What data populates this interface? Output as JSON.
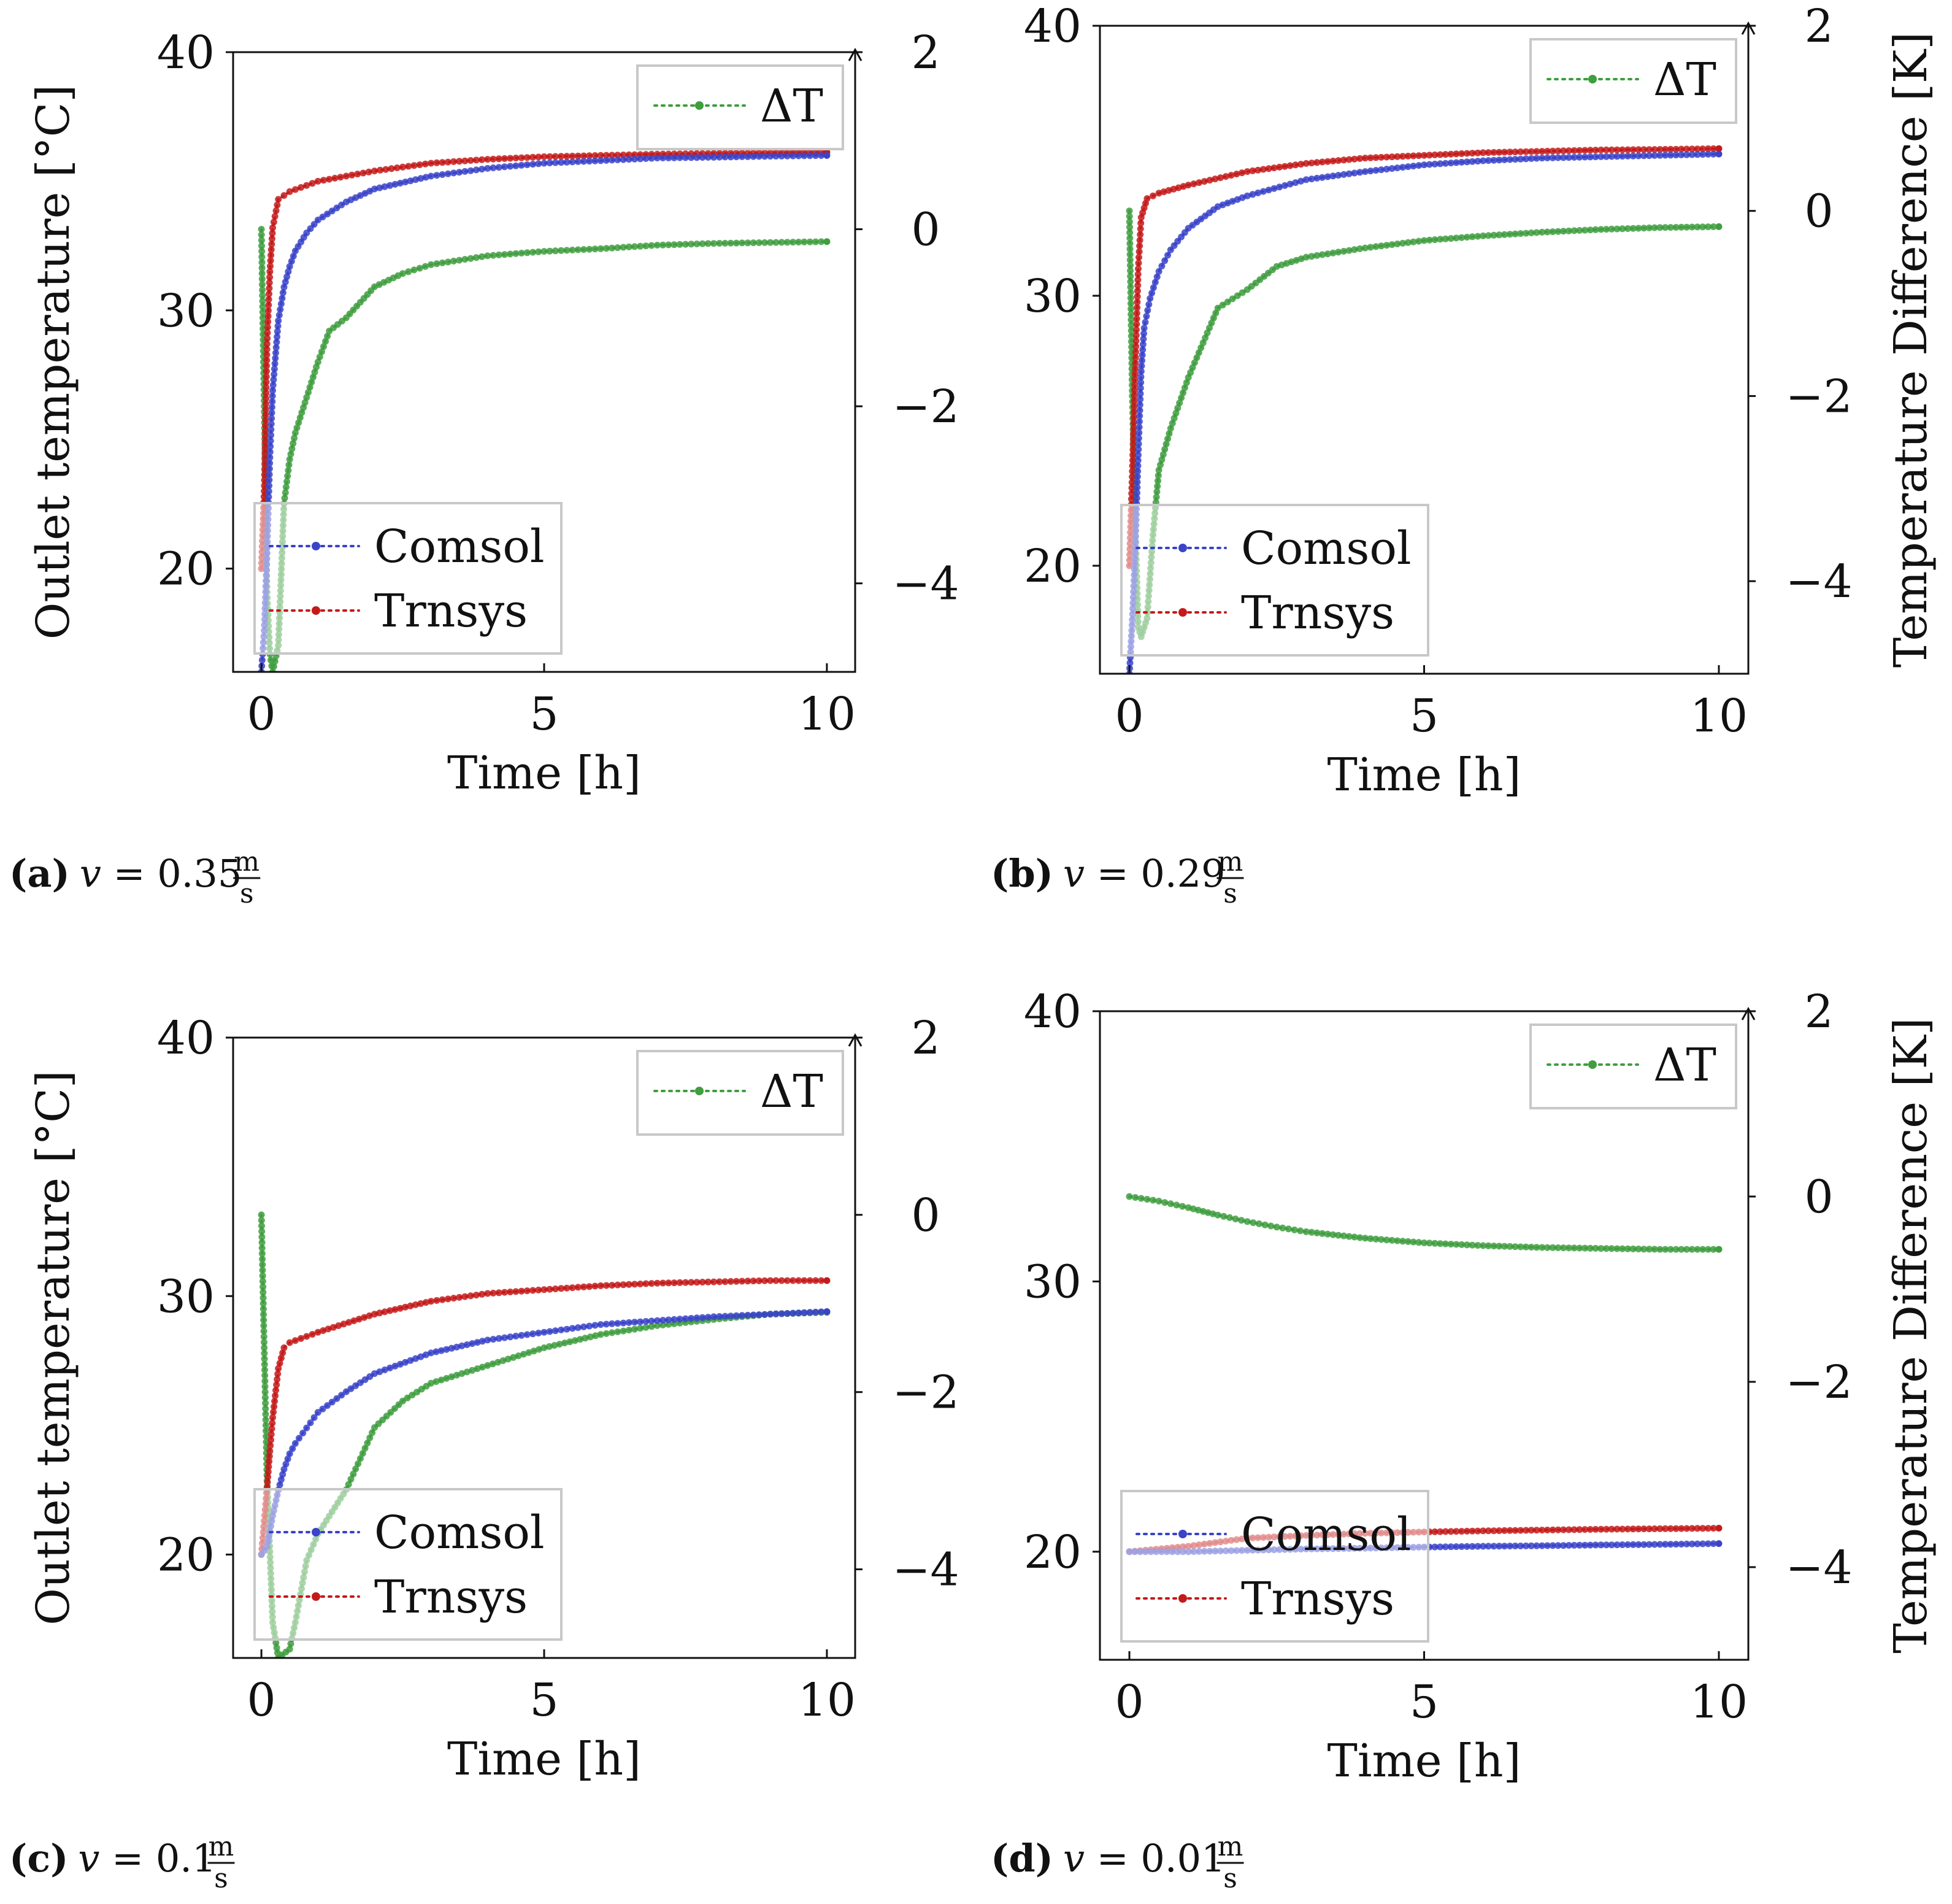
{
  "colors": {
    "comsol": "#3a43c9",
    "trnsys": "#c41a1a",
    "delta": "#3f9e3f",
    "legend_border": "#c8c8c8",
    "axis": "#111111"
  },
  "chart_data": [
    {
      "id": "a",
      "type": "line",
      "caption": {
        "tag": "(a)",
        "v_label": "v",
        "eq": " = 0.35 ",
        "unit_num": "m",
        "unit_den": "s"
      },
      "xlabel": "Time [h]",
      "ylabel": "Outlet temperature [°C]",
      "y2label": "",
      "xlim": [
        -0.5,
        10.5
      ],
      "ylim": [
        16,
        40
      ],
      "y2lim": [
        -5,
        2
      ],
      "xticks": [
        0,
        5,
        10
      ],
      "yticks": [
        20,
        30,
        40
      ],
      "y2ticks": [
        -4,
        -2,
        0,
        2
      ],
      "legend_main": [
        "Comsol",
        "Trnsys"
      ],
      "legend_delta": "ΔT",
      "series": [
        {
          "name": "Comsol",
          "axis": "left",
          "points": [
            [
              0,
              16
            ],
            [
              0.05,
              17.6
            ],
            [
              0.1,
              20.6
            ],
            [
              0.15,
              24.3
            ],
            [
              0.2,
              26.9
            ],
            [
              0.3,
              29.6
            ],
            [
              0.4,
              30.9
            ],
            [
              0.5,
              31.7
            ],
            [
              0.6,
              32.3
            ],
            [
              0.8,
              33
            ],
            [
              1,
              33.5
            ],
            [
              1.5,
              34.2
            ],
            [
              2,
              34.7
            ],
            [
              3,
              35.2
            ],
            [
              4,
              35.5
            ],
            [
              5,
              35.7
            ],
            [
              6,
              35.8
            ],
            [
              7,
              35.9
            ],
            [
              8,
              35.93
            ],
            [
              9,
              35.97
            ],
            [
              10,
              36
            ]
          ]
        },
        {
          "name": "Trnsys",
          "axis": "left",
          "points": [
            [
              0,
              20
            ],
            [
              0.05,
              23
            ],
            [
              0.1,
              28.7
            ],
            [
              0.15,
              31.5
            ],
            [
              0.2,
              33.2
            ],
            [
              0.3,
              34.3
            ],
            [
              0.5,
              34.6
            ],
            [
              1,
              35
            ],
            [
              2,
              35.4
            ],
            [
              3,
              35.7
            ],
            [
              4,
              35.85
            ],
            [
              5,
              35.95
            ],
            [
              6,
              36
            ],
            [
              7,
              36.05
            ],
            [
              8,
              36.08
            ],
            [
              9,
              36.1
            ],
            [
              10,
              36.12
            ]
          ]
        },
        {
          "name": "ΔT",
          "axis": "right",
          "points": [
            [
              0,
              0
            ],
            [
              0.05,
              -2
            ],
            [
              0.1,
              -4.1
            ],
            [
              0.15,
              -4.8
            ],
            [
              0.2,
              -5
            ],
            [
              0.3,
              -4.7
            ],
            [
              0.4,
              -3.1
            ],
            [
              0.5,
              -2.6
            ],
            [
              0.6,
              -2.3
            ],
            [
              0.8,
              -1.9
            ],
            [
              1,
              -1.5
            ],
            [
              1.2,
              -1.15
            ],
            [
              1.5,
              -1
            ],
            [
              2,
              -0.65
            ],
            [
              2.5,
              -0.5
            ],
            [
              3,
              -0.4
            ],
            [
              4,
              -0.3
            ],
            [
              5,
              -0.25
            ],
            [
              6,
              -0.22
            ],
            [
              7,
              -0.18
            ],
            [
              8,
              -0.16
            ],
            [
              9,
              -0.15
            ],
            [
              10,
              -0.14
            ]
          ]
        }
      ]
    },
    {
      "id": "b",
      "type": "line",
      "caption": {
        "tag": "(b)",
        "v_label": "v",
        "eq": " = 0.29 ",
        "unit_num": "m",
        "unit_den": "s"
      },
      "xlabel": "Time [h]",
      "ylabel": "",
      "y2label": "Temperature Difference [K]",
      "xlim": [
        -0.5,
        10.5
      ],
      "ylim": [
        16,
        40
      ],
      "y2lim": [
        -5,
        2
      ],
      "xticks": [
        0,
        5,
        10
      ],
      "yticks": [
        20,
        30,
        40
      ],
      "y2ticks": [
        -4,
        -2,
        0,
        2
      ],
      "legend_main": [
        "Comsol",
        "Trnsys"
      ],
      "legend_delta": "ΔT",
      "series": [
        {
          "name": "Comsol",
          "axis": "left",
          "points": [
            [
              0,
              16
            ],
            [
              0.05,
              18
            ],
            [
              0.1,
              20.7
            ],
            [
              0.15,
              24.1
            ],
            [
              0.2,
              27.2
            ],
            [
              0.25,
              28.8
            ],
            [
              0.35,
              29.9
            ],
            [
              0.5,
              30.9
            ],
            [
              0.7,
              31.7
            ],
            [
              1,
              32.5
            ],
            [
              1.5,
              33.3
            ],
            [
              2,
              33.7
            ],
            [
              3,
              34.3
            ],
            [
              4,
              34.6
            ],
            [
              5,
              34.85
            ],
            [
              6,
              35
            ],
            [
              7,
              35.1
            ],
            [
              8,
              35.15
            ],
            [
              9,
              35.2
            ],
            [
              10,
              35.25
            ]
          ]
        },
        {
          "name": "Trnsys",
          "axis": "left",
          "points": [
            [
              0,
              20
            ],
            [
              0.05,
              23.5
            ],
            [
              0.1,
              27.3
            ],
            [
              0.15,
              31
            ],
            [
              0.2,
              32.9
            ],
            [
              0.3,
              33.6
            ],
            [
              0.5,
              33.8
            ],
            [
              1,
              34.1
            ],
            [
              2,
              34.6
            ],
            [
              3,
              34.9
            ],
            [
              4,
              35.1
            ],
            [
              5,
              35.2
            ],
            [
              6,
              35.3
            ],
            [
              7,
              35.35
            ],
            [
              8,
              35.4
            ],
            [
              9,
              35.42
            ],
            [
              10,
              35.45
            ]
          ]
        },
        {
          "name": "ΔT",
          "axis": "right",
          "points": [
            [
              0,
              0
            ],
            [
              0.05,
              -2
            ],
            [
              0.1,
              -3.4
            ],
            [
              0.15,
              -4.5
            ],
            [
              0.2,
              -4.6
            ],
            [
              0.3,
              -4.4
            ],
            [
              0.4,
              -3.5
            ],
            [
              0.5,
              -2.8
            ],
            [
              0.7,
              -2.35
            ],
            [
              1,
              -1.8
            ],
            [
              1.5,
              -1.05
            ],
            [
              2,
              -0.85
            ],
            [
              2.5,
              -0.6
            ],
            [
              3,
              -0.5
            ],
            [
              4,
              -0.4
            ],
            [
              5,
              -0.32
            ],
            [
              6,
              -0.27
            ],
            [
              7,
              -0.23
            ],
            [
              8,
              -0.2
            ],
            [
              9,
              -0.18
            ],
            [
              10,
              -0.17
            ]
          ]
        }
      ]
    },
    {
      "id": "c",
      "type": "line",
      "caption": {
        "tag": "(c)",
        "v_label": "v",
        "eq": " = 0.1 ",
        "unit_num": "m",
        "unit_den": "s"
      },
      "xlabel": "Time [h]",
      "ylabel": "Outlet temperature [°C]",
      "y2label": "",
      "xlim": [
        -0.5,
        10.5
      ],
      "ylim": [
        16,
        40
      ],
      "y2lim": [
        -5,
        2
      ],
      "xticks": [
        0,
        5,
        10
      ],
      "yticks": [
        20,
        30,
        40
      ],
      "y2ticks": [
        -4,
        -2,
        0,
        2
      ],
      "legend_main": [
        "Comsol",
        "Trnsys"
      ],
      "legend_delta": "ΔT",
      "series": [
        {
          "name": "Comsol",
          "axis": "left",
          "points": [
            [
              0,
              20
            ],
            [
              0.1,
              20.3
            ],
            [
              0.2,
              21.5
            ],
            [
              0.3,
              22.5
            ],
            [
              0.4,
              23.3
            ],
            [
              0.5,
              23.9
            ],
            [
              0.6,
              24.3
            ],
            [
              0.8,
              24.9
            ],
            [
              1,
              25.5
            ],
            [
              1.5,
              26.3
            ],
            [
              2,
              27
            ],
            [
              3,
              27.8
            ],
            [
              4,
              28.3
            ],
            [
              5,
              28.6
            ],
            [
              6,
              28.9
            ],
            [
              7,
              29.05
            ],
            [
              8,
              29.2
            ],
            [
              9,
              29.3
            ],
            [
              10,
              29.4
            ]
          ]
        },
        {
          "name": "Trnsys",
          "axis": "left",
          "points": [
            [
              0,
              20
            ],
            [
              0.05,
              21.3
            ],
            [
              0.1,
              22.6
            ],
            [
              0.15,
              24
            ],
            [
              0.2,
              25.3
            ],
            [
              0.3,
              27.2
            ],
            [
              0.4,
              28
            ],
            [
              0.5,
              28.2
            ],
            [
              1,
              28.6
            ],
            [
              2,
              29.3
            ],
            [
              3,
              29.8
            ],
            [
              4,
              30.1
            ],
            [
              5,
              30.25
            ],
            [
              6,
              30.4
            ],
            [
              7,
              30.5
            ],
            [
              8,
              30.55
            ],
            [
              9,
              30.6
            ],
            [
              10,
              30.6
            ]
          ]
        },
        {
          "name": "ΔT",
          "axis": "right",
          "points": [
            [
              0,
              0
            ],
            [
              0.05,
              -1.5
            ],
            [
              0.1,
              -3
            ],
            [
              0.2,
              -4.6
            ],
            [
              0.3,
              -5
            ],
            [
              0.5,
              -4.9
            ],
            [
              0.6,
              -4.6
            ],
            [
              0.8,
              -3.9
            ],
            [
              1,
              -3.6
            ],
            [
              1.5,
              -3.1
            ],
            [
              2,
              -2.4
            ],
            [
              2.5,
              -2.1
            ],
            [
              3,
              -1.9
            ],
            [
              4,
              -1.7
            ],
            [
              5,
              -1.5
            ],
            [
              6,
              -1.35
            ],
            [
              7,
              -1.25
            ],
            [
              8,
              -1.18
            ],
            [
              9,
              -1.12
            ],
            [
              10,
              -1.1
            ]
          ]
        }
      ]
    },
    {
      "id": "d",
      "type": "line",
      "caption": {
        "tag": "(d)",
        "v_label": "v",
        "eq": " = 0.01 ",
        "unit_num": "m",
        "unit_den": "s"
      },
      "xlabel": "Time [h]",
      "ylabel": "",
      "y2label": "Temperature Difference [K]",
      "xlim": [
        -0.5,
        10.5
      ],
      "ylim": [
        16,
        40
      ],
      "y2lim": [
        -5,
        2
      ],
      "xticks": [
        0,
        5,
        10
      ],
      "yticks": [
        20,
        30,
        40
      ],
      "y2ticks": [
        -4,
        -2,
        0,
        2
      ],
      "legend_main": [
        "Comsol",
        "Trnsys"
      ],
      "legend_delta": "ΔT",
      "series": [
        {
          "name": "Comsol",
          "axis": "left",
          "points": [
            [
              0,
              20
            ],
            [
              1,
              20
            ],
            [
              2,
              20.05
            ],
            [
              3,
              20.1
            ],
            [
              4,
              20.13
            ],
            [
              5,
              20.17
            ],
            [
              6,
              20.2
            ],
            [
              7,
              20.22
            ],
            [
              8,
              20.25
            ],
            [
              9,
              20.27
            ],
            [
              10,
              20.3
            ]
          ]
        },
        {
          "name": "Trnsys",
          "axis": "left",
          "points": [
            [
              0,
              20
            ],
            [
              1,
              20.2
            ],
            [
              2,
              20.5
            ],
            [
              3,
              20.6
            ],
            [
              4,
              20.68
            ],
            [
              5,
              20.73
            ],
            [
              6,
              20.77
            ],
            [
              7,
              20.8
            ],
            [
              8,
              20.83
            ],
            [
              9,
              20.85
            ],
            [
              10,
              20.87
            ]
          ]
        },
        {
          "name": "ΔT",
          "axis": "right",
          "points": [
            [
              0,
              0
            ],
            [
              0.5,
              -0.05
            ],
            [
              1,
              -0.12
            ],
            [
              1.5,
              -0.2
            ],
            [
              2,
              -0.27
            ],
            [
              2.5,
              -0.33
            ],
            [
              3,
              -0.38
            ],
            [
              4,
              -0.45
            ],
            [
              5,
              -0.5
            ],
            [
              6,
              -0.53
            ],
            [
              7,
              -0.55
            ],
            [
              8,
              -0.56
            ],
            [
              9,
              -0.57
            ],
            [
              10,
              -0.57
            ]
          ]
        }
      ]
    }
  ]
}
